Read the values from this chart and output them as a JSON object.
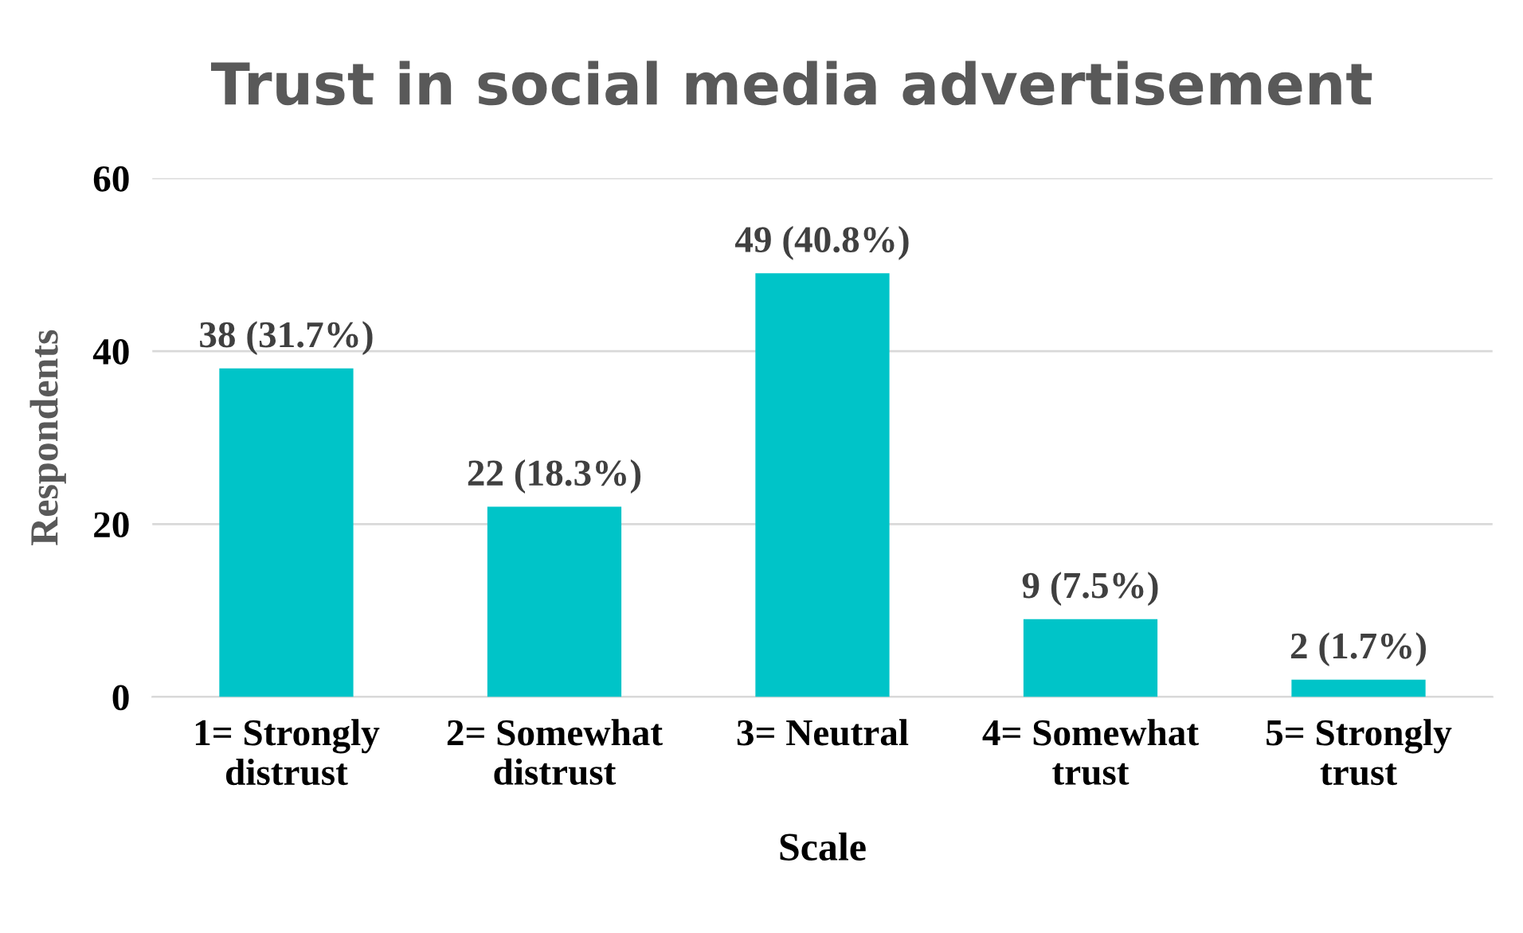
{
  "chart_data": {
    "type": "bar",
    "title": "Trust in social media advertisement",
    "xlabel": "Scale",
    "ylabel": "Respondents",
    "categories": [
      "1= Strongly\ndistrust",
      "2= Somewhat\ndistrust",
      "3= Neutral",
      "4= Somewhat\ntrust",
      "5= Strongly\ntrust"
    ],
    "values": [
      38,
      22,
      49,
      9,
      2
    ],
    "value_labels": [
      "38 (31.7%)",
      "22 (18.3%)",
      "49 (40.8%)",
      "9 (7.5%)",
      "2 (1.7%)"
    ],
    "color": "#00c4c8",
    "ylim": [
      0,
      60
    ],
    "yticks": [
      0,
      20,
      40,
      60
    ],
    "grid": "y"
  }
}
